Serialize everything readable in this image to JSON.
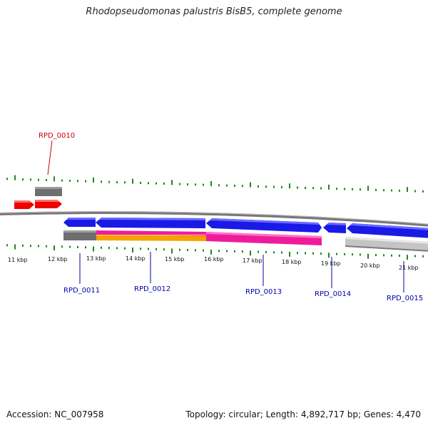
{
  "title": "Rhodopseudomonas palustris BisB5, complete genome",
  "footer": {
    "accession": "Accession: NC_007958",
    "summary": "Topology: circular; Length: 4,892,717 bp; Genes: 4,470"
  },
  "colors": {
    "backbone": "#808080",
    "tick": "#1a8a1a",
    "forward_gene": "#ff0000",
    "reverse_gene": "#0000ff",
    "orf_gray": "#707070",
    "feature_orange": "#ffa500",
    "feature_magenta": "#ff00aa",
    "feature_lightgray": "#c8c8c8",
    "label_red": "#cc0000",
    "label_blue": "#0000aa"
  },
  "scale": {
    "labels": [
      "11 kbp",
      "12 kbp",
      "13 kbp",
      "14 kbp",
      "15 kbp",
      "16 kbp",
      "17 kbp",
      "18 kbp",
      "19 kbp",
      "20 kbp",
      "21 kbp"
    ]
  },
  "genes": [
    {
      "id": "RPD_0010",
      "color": "label_red"
    },
    {
      "id": "RPD_0011",
      "color": "label_blue"
    },
    {
      "id": "RPD_0012",
      "color": "label_blue"
    },
    {
      "id": "RPD_0013",
      "color": "label_blue"
    },
    {
      "id": "RPD_0014",
      "color": "label_blue"
    },
    {
      "id": "RPD_0015",
      "color": "label_blue"
    }
  ]
}
